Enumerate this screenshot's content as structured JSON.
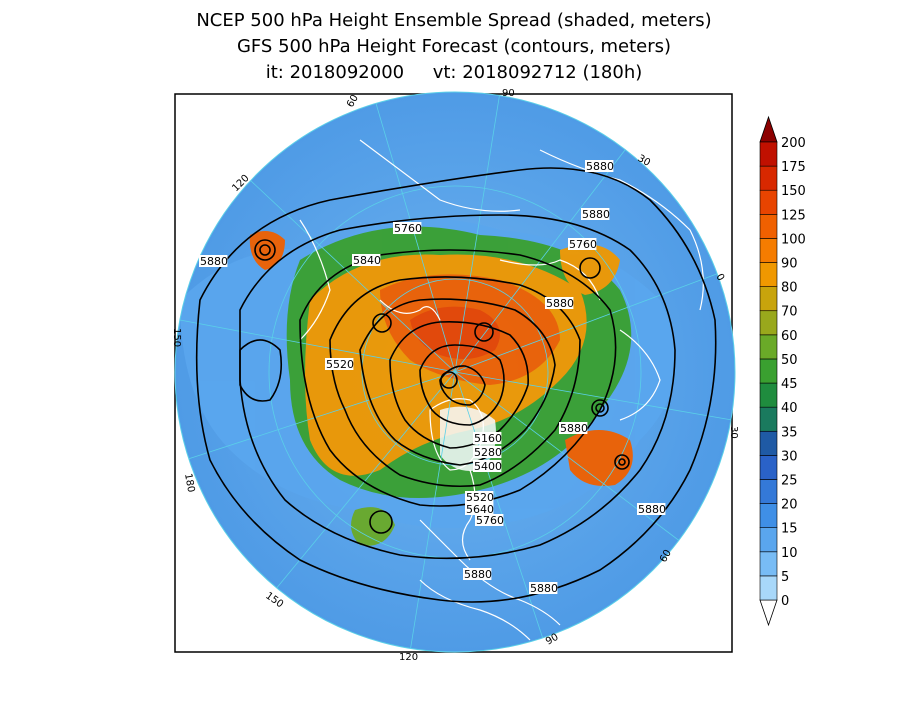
{
  "title": {
    "line1": "NCEP 500 hPa Height Ensemble Spread (shaded, meters)",
    "line2": "GFS 500 hPa Height Forecast (contours, meters)",
    "line3": "it: 2018092000     vt: 2018092712 (180h)"
  },
  "colorbar": {
    "levels": [
      "0",
      "5",
      "10",
      "15",
      "20",
      "25",
      "30",
      "35",
      "40",
      "45",
      "50",
      "60",
      "70",
      "80",
      "90",
      "100",
      "125",
      "150",
      "175",
      "200"
    ],
    "colors": [
      "#a8d8fa",
      "#78bcf5",
      "#5aa6ee",
      "#3f8fe6",
      "#3479d8",
      "#2a62c8",
      "#1f5aa5",
      "#1a7a5e",
      "#1f8c3e",
      "#3aa030",
      "#6aaa28",
      "#99a81c",
      "#c8a40c",
      "#f09800",
      "#f57c00",
      "#f06000",
      "#e84400",
      "#d82800",
      "#c01000",
      "#8c0000"
    ]
  },
  "contour_labels": [
    "5760",
    "5840",
    "5880",
    "5520",
    "5160",
    "5280",
    "5400",
    "5640",
    "5760",
    "5880",
    "5880",
    "5880",
    "5880",
    "5880",
    "5880",
    "5880",
    "5760",
    "5520"
  ],
  "longitude_labels": [
    "90",
    "60",
    "30",
    "0",
    "30",
    "60",
    "90",
    "120",
    "150",
    "180",
    "150",
    "120"
  ],
  "colors": {
    "ocean": "#5ea8ec",
    "coast": "#ffffff",
    "contour": "#000000",
    "graticule": "#5ad0e8"
  }
}
